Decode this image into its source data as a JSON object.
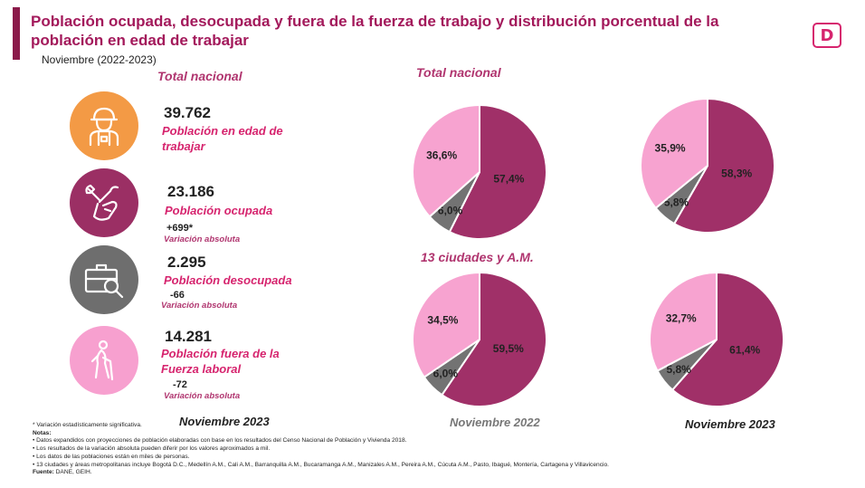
{
  "header": {
    "title": "Población ocupada, desocupada y fuera de la fuerza de trabajo y distribución porcentual de la población en edad de trabajar",
    "subtitle": "Noviembre (2022-2023)",
    "logo_letter": "D"
  },
  "left": {
    "heading": "Total nacional",
    "items": [
      {
        "value": "39.762",
        "label": "Población en edad de trabajar",
        "icon": "worker-icon",
        "color": "#f39a45"
      },
      {
        "value": "23.186",
        "label": "Población ocupada",
        "variation": "+699*",
        "variation_label": "Variación absoluta",
        "icon": "tools-icon",
        "color": "#9b2f64"
      },
      {
        "value": "2.295",
        "label": "Población desocupada",
        "variation": "-66",
        "variation_label": "Variación absoluta",
        "icon": "briefcase-search-icon",
        "color": "#6e6e6e"
      },
      {
        "value": "14.281",
        "label": "Población fuera de la Fuerza laboral",
        "variation": "-72",
        "variation_label": "Variación absoluta",
        "icon": "elderly-person-icon",
        "color": "#f7a0cf"
      }
    ],
    "footer_date": "Noviembre 2023"
  },
  "right": {
    "heading_top": "Total nacional",
    "heading_bottom": "13 ciudades y A.M.",
    "date_2022": "Noviembre 2022",
    "date_2023": "Noviembre 2023"
  },
  "colors": {
    "ocupada": "#a03068",
    "desocupada": "#737373",
    "fuera": "#f7a3d0"
  },
  "chart_data": [
    {
      "type": "pie",
      "group": "Total nacional",
      "period": "Noviembre 2022",
      "slices": [
        {
          "value": 57.4,
          "label": "57,4%"
        },
        {
          "value": 6.0,
          "label": "6,0%"
        },
        {
          "value": 36.6,
          "label": "36,6%"
        }
      ]
    },
    {
      "type": "pie",
      "group": "Total nacional",
      "period": "Noviembre 2023",
      "slices": [
        {
          "value": 58.3,
          "label": "58,3%"
        },
        {
          "value": 5.8,
          "label": "5,8%"
        },
        {
          "value": 35.9,
          "label": "35,9%"
        }
      ]
    },
    {
      "type": "pie",
      "group": "13 ciudades y A.M.",
      "period": "Noviembre 2022",
      "slices": [
        {
          "value": 59.5,
          "label": "59,5%"
        },
        {
          "value": 6.0,
          "label": "6,0%"
        },
        {
          "value": 34.5,
          "label": "34,5%"
        }
      ]
    },
    {
      "type": "pie",
      "group": "13 ciudades y A.M.",
      "period": "Noviembre 2023",
      "slices": [
        {
          "value": 61.4,
          "label": "61,4%"
        },
        {
          "value": 5.8,
          "label": "5,8%"
        },
        {
          "value": 32.7,
          "label": "32,7%"
        }
      ]
    }
  ],
  "notes": {
    "significance": "* Variación estadísticamente significativa.",
    "heading": "Notas",
    "lines": [
      "• Datos expandidos con proyecciones de población elaboradas con base en los resultados del Censo Nacional de Población y Vivienda 2018.",
      "• Los resultados de la variación absoluta pueden diferir por los valores aproximados a mil.",
      "• Los datos de las poblaciones están en miles de personas.",
      "• 13 ciudades y áreas metropolitanas incluye Bogotá D.C., Medellín A.M., Cali A.M., Barranquilla A.M., Bucaramanga A.M., Manizales A.M., Pereira A.M., Cúcuta A.M., Pasto, Ibagué, Montería, Cartagena y Villavicencio."
    ],
    "source_label": "Fuente:",
    "source": "DANE, GEIH."
  }
}
